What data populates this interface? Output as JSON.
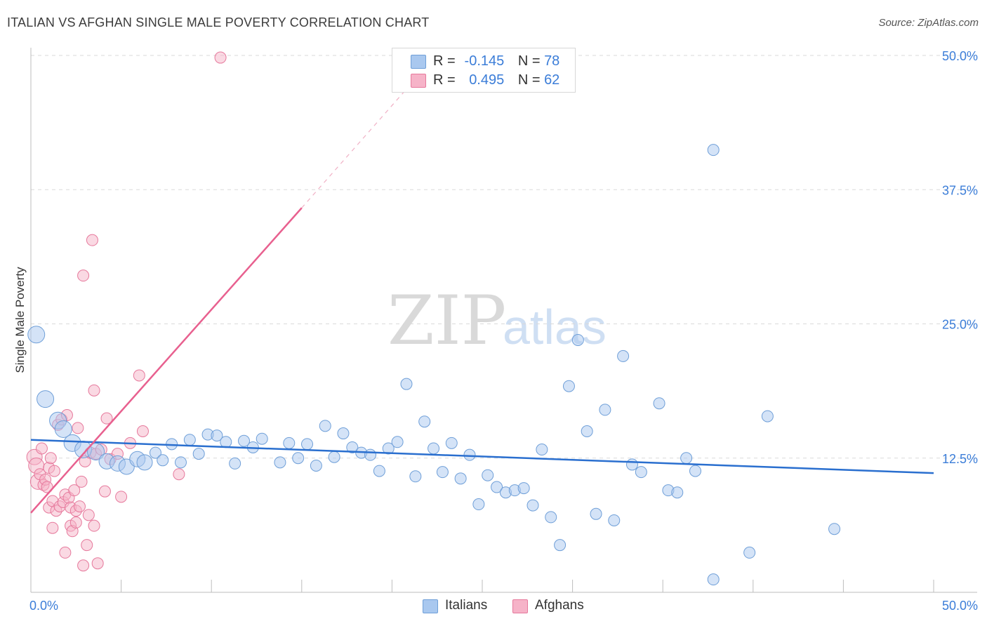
{
  "title": "ITALIAN VS AFGHAN SINGLE MALE POVERTY CORRELATION CHART",
  "source": "Source: ZipAtlas.com",
  "watermark": {
    "zip": "ZIP",
    "atlas": "atlas"
  },
  "legend": {
    "italians": {
      "r_label": "R =",
      "r_value": "-0.145",
      "n_label": "N =",
      "n_value": "78"
    },
    "afghans": {
      "r_label": "R =",
      "r_value": "0.495",
      "n_label": "N =",
      "n_value": "62"
    }
  },
  "bottom_legend": {
    "italians": "Italians",
    "afghans": "Afghans"
  },
  "colors": {
    "italians_fill": "#a9c8ef",
    "italians_stroke": "#6f9fd8",
    "italians_line": "#2a6fcf",
    "afghans_fill": "#f6b3c8",
    "afghans_stroke": "#e6799c",
    "afghans_line": "#e8608f",
    "tick_text": "#3b7dd8",
    "grid": "#d9d9d9"
  },
  "chart_data": {
    "type": "scatter",
    "title": "ITALIAN VS AFGHAN SINGLE MALE POVERTY CORRELATION CHART",
    "xlabel": "",
    "ylabel": "Single Male Poverty",
    "xlim": [
      0,
      50
    ],
    "ylim": [
      0,
      50
    ],
    "x_tick_labels": [
      "0.0%",
      "50.0%"
    ],
    "y_ticks": [
      12.5,
      25.0,
      37.5,
      50.0
    ],
    "y_tick_labels": [
      "12.5%",
      "25.0%",
      "37.5%",
      "50.0%"
    ],
    "series": [
      {
        "name": "Italians",
        "trend": {
          "x0": 0,
          "y0": 14.2,
          "x1": 50,
          "y1": 11.1
        },
        "points": [
          {
            "x": 0.3,
            "y": 24.0,
            "s": 3
          },
          {
            "x": 0.8,
            "y": 18.0,
            "s": 3
          },
          {
            "x": 1.5,
            "y": 16.0,
            "s": 3
          },
          {
            "x": 1.8,
            "y": 15.2,
            "s": 3
          },
          {
            "x": 2.3,
            "y": 13.9,
            "s": 3
          },
          {
            "x": 2.9,
            "y": 13.3,
            "s": 3
          },
          {
            "x": 3.6,
            "y": 13.1,
            "s": 3
          },
          {
            "x": 4.2,
            "y": 12.2,
            "s": 2
          },
          {
            "x": 4.8,
            "y": 12.0,
            "s": 2
          },
          {
            "x": 5.3,
            "y": 11.7,
            "s": 2
          },
          {
            "x": 5.9,
            "y": 12.4,
            "s": 2
          },
          {
            "x": 6.3,
            "y": 12.1,
            "s": 2
          },
          {
            "x": 6.9,
            "y": 13.0,
            "s": 1
          },
          {
            "x": 7.3,
            "y": 12.3,
            "s": 1
          },
          {
            "x": 7.8,
            "y": 13.8,
            "s": 1
          },
          {
            "x": 8.3,
            "y": 12.1,
            "s": 1
          },
          {
            "x": 8.8,
            "y": 14.2,
            "s": 1
          },
          {
            "x": 9.3,
            "y": 12.9,
            "s": 1
          },
          {
            "x": 9.8,
            "y": 14.7,
            "s": 1
          },
          {
            "x": 10.3,
            "y": 14.6,
            "s": 1
          },
          {
            "x": 10.8,
            "y": 14.0,
            "s": 1
          },
          {
            "x": 11.3,
            "y": 12.0,
            "s": 1
          },
          {
            "x": 11.8,
            "y": 14.1,
            "s": 1
          },
          {
            "x": 12.3,
            "y": 13.5,
            "s": 1
          },
          {
            "x": 12.8,
            "y": 14.3,
            "s": 1
          },
          {
            "x": 13.8,
            "y": 12.1,
            "s": 1
          },
          {
            "x": 14.3,
            "y": 13.9,
            "s": 1
          },
          {
            "x": 14.8,
            "y": 12.5,
            "s": 1
          },
          {
            "x": 15.3,
            "y": 13.8,
            "s": 1
          },
          {
            "x": 15.8,
            "y": 11.8,
            "s": 1
          },
          {
            "x": 16.3,
            "y": 15.5,
            "s": 1
          },
          {
            "x": 16.8,
            "y": 12.6,
            "s": 1
          },
          {
            "x": 17.3,
            "y": 14.8,
            "s": 1
          },
          {
            "x": 17.8,
            "y": 13.5,
            "s": 1
          },
          {
            "x": 18.3,
            "y": 13.0,
            "s": 1
          },
          {
            "x": 18.8,
            "y": 12.8,
            "s": 1
          },
          {
            "x": 19.3,
            "y": 11.3,
            "s": 1
          },
          {
            "x": 19.8,
            "y": 13.4,
            "s": 1
          },
          {
            "x": 20.3,
            "y": 14.0,
            "s": 1
          },
          {
            "x": 20.8,
            "y": 19.4,
            "s": 1
          },
          {
            "x": 21.3,
            "y": 10.8,
            "s": 1
          },
          {
            "x": 21.8,
            "y": 15.9,
            "s": 1
          },
          {
            "x": 22.3,
            "y": 13.4,
            "s": 1
          },
          {
            "x": 22.8,
            "y": 11.2,
            "s": 1
          },
          {
            "x": 23.3,
            "y": 13.9,
            "s": 1
          },
          {
            "x": 23.8,
            "y": 10.6,
            "s": 1
          },
          {
            "x": 24.3,
            "y": 12.8,
            "s": 1
          },
          {
            "x": 24.8,
            "y": 8.2,
            "s": 1
          },
          {
            "x": 25.3,
            "y": 10.9,
            "s": 1
          },
          {
            "x": 25.8,
            "y": 9.8,
            "s": 1
          },
          {
            "x": 26.3,
            "y": 9.3,
            "s": 1
          },
          {
            "x": 26.8,
            "y": 9.5,
            "s": 1
          },
          {
            "x": 27.3,
            "y": 9.7,
            "s": 1
          },
          {
            "x": 27.8,
            "y": 8.1,
            "s": 1
          },
          {
            "x": 28.3,
            "y": 13.3,
            "s": 1
          },
          {
            "x": 28.8,
            "y": 7.0,
            "s": 1
          },
          {
            "x": 29.3,
            "y": 4.4,
            "s": 1
          },
          {
            "x": 29.8,
            "y": 19.2,
            "s": 1
          },
          {
            "x": 30.3,
            "y": 23.5,
            "s": 1
          },
          {
            "x": 30.8,
            "y": 15.0,
            "s": 1
          },
          {
            "x": 31.3,
            "y": 7.3,
            "s": 1
          },
          {
            "x": 31.8,
            "y": 17.0,
            "s": 1
          },
          {
            "x": 32.3,
            "y": 6.7,
            "s": 1
          },
          {
            "x": 32.8,
            "y": 22.0,
            "s": 1
          },
          {
            "x": 33.3,
            "y": 11.9,
            "s": 1
          },
          {
            "x": 33.8,
            "y": 11.2,
            "s": 1
          },
          {
            "x": 34.8,
            "y": 17.6,
            "s": 1
          },
          {
            "x": 35.3,
            "y": 9.5,
            "s": 1
          },
          {
            "x": 35.8,
            "y": 9.3,
            "s": 1
          },
          {
            "x": 36.3,
            "y": 12.5,
            "s": 1
          },
          {
            "x": 36.8,
            "y": 11.3,
            "s": 1
          },
          {
            "x": 37.8,
            "y": 1.2,
            "s": 1
          },
          {
            "x": 37.8,
            "y": 41.2,
            "s": 1
          },
          {
            "x": 39.8,
            "y": 3.7,
            "s": 1
          },
          {
            "x": 40.8,
            "y": 16.4,
            "s": 1
          },
          {
            "x": 44.5,
            "y": 5.9,
            "s": 1
          }
        ]
      },
      {
        "name": "Afghans",
        "trend": {
          "x0": 0,
          "y0": 7.4,
          "x1": 15,
          "y1": 35.8
        },
        "trend_dashed": {
          "x0": 15,
          "y0": 35.8,
          "x1": 21.5,
          "y1": 48.2
        },
        "points": [
          {
            "x": 0.2,
            "y": 12.6,
            "s": 2
          },
          {
            "x": 0.3,
            "y": 11.8,
            "s": 2
          },
          {
            "x": 0.4,
            "y": 10.3,
            "s": 2
          },
          {
            "x": 0.5,
            "y": 11.0,
            "s": 1
          },
          {
            "x": 0.6,
            "y": 13.4,
            "s": 1
          },
          {
            "x": 0.7,
            "y": 10.0,
            "s": 1
          },
          {
            "x": 0.8,
            "y": 10.5,
            "s": 1
          },
          {
            "x": 0.9,
            "y": 9.8,
            "s": 1
          },
          {
            "x": 1.0,
            "y": 11.6,
            "s": 1
          },
          {
            "x": 1.0,
            "y": 7.9,
            "s": 1
          },
          {
            "x": 1.1,
            "y": 12.5,
            "s": 1
          },
          {
            "x": 1.2,
            "y": 8.5,
            "s": 1
          },
          {
            "x": 1.2,
            "y": 6.0,
            "s": 1
          },
          {
            "x": 1.3,
            "y": 11.3,
            "s": 1
          },
          {
            "x": 1.4,
            "y": 7.6,
            "s": 1
          },
          {
            "x": 1.5,
            "y": 15.6,
            "s": 1
          },
          {
            "x": 1.6,
            "y": 8.0,
            "s": 1
          },
          {
            "x": 1.7,
            "y": 16.1,
            "s": 1
          },
          {
            "x": 1.8,
            "y": 8.4,
            "s": 1
          },
          {
            "x": 1.9,
            "y": 9.1,
            "s": 1
          },
          {
            "x": 1.9,
            "y": 3.7,
            "s": 1
          },
          {
            "x": 2.0,
            "y": 16.5,
            "s": 1
          },
          {
            "x": 2.1,
            "y": 8.8,
            "s": 1
          },
          {
            "x": 2.2,
            "y": 7.9,
            "s": 1
          },
          {
            "x": 2.2,
            "y": 6.2,
            "s": 1
          },
          {
            "x": 2.3,
            "y": 5.7,
            "s": 1
          },
          {
            "x": 2.4,
            "y": 9.5,
            "s": 1
          },
          {
            "x": 2.5,
            "y": 7.6,
            "s": 1
          },
          {
            "x": 2.5,
            "y": 6.5,
            "s": 1
          },
          {
            "x": 2.6,
            "y": 15.3,
            "s": 1
          },
          {
            "x": 2.7,
            "y": 8.0,
            "s": 1
          },
          {
            "x": 2.8,
            "y": 10.3,
            "s": 1
          },
          {
            "x": 2.9,
            "y": 29.5,
            "s": 1
          },
          {
            "x": 2.9,
            "y": 2.5,
            "s": 1
          },
          {
            "x": 3.0,
            "y": 12.2,
            "s": 1
          },
          {
            "x": 3.1,
            "y": 4.4,
            "s": 1
          },
          {
            "x": 3.2,
            "y": 7.2,
            "s": 1
          },
          {
            "x": 3.3,
            "y": 13.0,
            "s": 1
          },
          {
            "x": 3.4,
            "y": 32.8,
            "s": 1
          },
          {
            "x": 3.5,
            "y": 18.8,
            "s": 1
          },
          {
            "x": 3.5,
            "y": 6.2,
            "s": 1
          },
          {
            "x": 3.6,
            "y": 12.9,
            "s": 1
          },
          {
            "x": 3.7,
            "y": 2.7,
            "s": 1
          },
          {
            "x": 3.9,
            "y": 13.3,
            "s": 1
          },
          {
            "x": 4.1,
            "y": 9.4,
            "s": 1
          },
          {
            "x": 4.2,
            "y": 16.2,
            "s": 1
          },
          {
            "x": 4.4,
            "y": 12.4,
            "s": 1
          },
          {
            "x": 4.8,
            "y": 12.9,
            "s": 1
          },
          {
            "x": 5.0,
            "y": 8.9,
            "s": 1
          },
          {
            "x": 5.5,
            "y": 13.9,
            "s": 1
          },
          {
            "x": 6.0,
            "y": 20.2,
            "s": 1
          },
          {
            "x": 6.2,
            "y": 15.0,
            "s": 1
          },
          {
            "x": 8.2,
            "y": 11.0,
            "s": 1
          },
          {
            "x": 10.5,
            "y": 49.8,
            "s": 1
          }
        ]
      }
    ]
  }
}
